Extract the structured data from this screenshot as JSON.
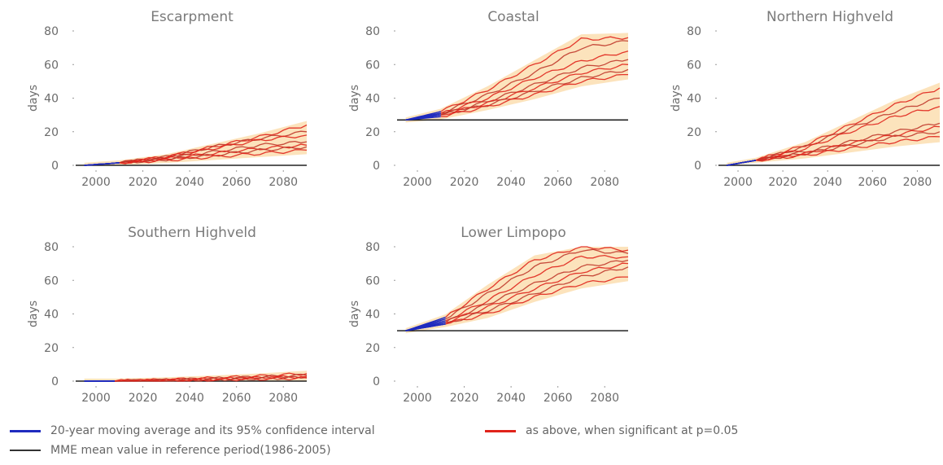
{
  "chart_data": [
    {
      "type": "line",
      "title": "Escarpment",
      "ylabel": "days",
      "x_ticks": [
        2000,
        2020,
        2040,
        2060,
        2080
      ],
      "y_ticks": [
        0,
        20,
        40,
        60,
        80
      ],
      "xlim": [
        1992,
        2090
      ],
      "ylim": [
        0,
        80
      ],
      "reference_value": null,
      "historical_window": [
        1995,
        2010
      ],
      "series": [
        {
          "x": [
            1995,
            2010,
            2030,
            2050,
            2070,
            2090
          ],
          "y": [
            0,
            1.5,
            5,
            11,
            17,
            24
          ]
        },
        {
          "x": [
            1995,
            2010,
            2030,
            2050,
            2070,
            2090
          ],
          "y": [
            0,
            1.5,
            5,
            11,
            16,
            20
          ]
        },
        {
          "x": [
            1995,
            2010,
            2030,
            2050,
            2070,
            2090
          ],
          "y": [
            0,
            1.5,
            5,
            10,
            15,
            18
          ]
        },
        {
          "x": [
            1995,
            2010,
            2030,
            2050,
            2070,
            2090
          ],
          "y": [
            0,
            1.5,
            4,
            8,
            12,
            14
          ]
        },
        {
          "x": [
            1995,
            2010,
            2030,
            2050,
            2070,
            2090
          ],
          "y": [
            0,
            1.5,
            4,
            7,
            10,
            12
          ]
        },
        {
          "x": [
            1995,
            2010,
            2030,
            2050,
            2070,
            2090
          ],
          "y": [
            0,
            1.5,
            3.5,
            6,
            9,
            11
          ]
        },
        {
          "x": [
            1995,
            2010,
            2030,
            2050,
            2070,
            2090
          ],
          "y": [
            0,
            1.5,
            3,
            5,
            7,
            9
          ]
        }
      ]
    },
    {
      "type": "line",
      "title": "Coastal",
      "ylabel": "days",
      "x_ticks": [
        2000,
        2020,
        2040,
        2060,
        2080
      ],
      "y_ticks": [
        0,
        20,
        40,
        60,
        80
      ],
      "xlim": [
        1992,
        2090
      ],
      "ylim": [
        0,
        80
      ],
      "reference_value": 27,
      "historical_window": [
        1995,
        2010
      ],
      "series": [
        {
          "x": [
            1995,
            2010,
            2030,
            2050,
            2070,
            2090
          ],
          "y": [
            27,
            32,
            45,
            60,
            75,
            76
          ]
        },
        {
          "x": [
            1995,
            2010,
            2030,
            2050,
            2070,
            2090
          ],
          "y": [
            27,
            31,
            42,
            55,
            70,
            74
          ]
        },
        {
          "x": [
            1995,
            2010,
            2030,
            2050,
            2070,
            2090
          ],
          "y": [
            27,
            31,
            40,
            52,
            62,
            68
          ]
        },
        {
          "x": [
            1995,
            2010,
            2030,
            2050,
            2070,
            2090
          ],
          "y": [
            27,
            30,
            38,
            48,
            58,
            63
          ]
        },
        {
          "x": [
            1995,
            2010,
            2030,
            2050,
            2070,
            2090
          ],
          "y": [
            27,
            30,
            37,
            46,
            55,
            60
          ]
        },
        {
          "x": [
            1995,
            2010,
            2030,
            2050,
            2070,
            2090
          ],
          "y": [
            27,
            30,
            36,
            44,
            52,
            57
          ]
        },
        {
          "x": [
            1995,
            2010,
            2030,
            2050,
            2070,
            2090
          ],
          "y": [
            27,
            29,
            35,
            42,
            50,
            54
          ]
        }
      ]
    },
    {
      "type": "line",
      "title": "Northern Highveld",
      "ylabel": "days",
      "x_ticks": [
        2000,
        2020,
        2040,
        2060,
        2080
      ],
      "y_ticks": [
        0,
        20,
        40,
        60,
        80
      ],
      "xlim": [
        1992,
        2090
      ],
      "ylim": [
        0,
        80
      ],
      "reference_value": null,
      "historical_window": [
        1995,
        2008
      ],
      "series": [
        {
          "x": [
            1995,
            2008,
            2030,
            2050,
            2070,
            2090
          ],
          "y": [
            0,
            3,
            12,
            24,
            36,
            46
          ]
        },
        {
          "x": [
            1995,
            2008,
            2030,
            2050,
            2070,
            2090
          ],
          "y": [
            0,
            3,
            11,
            22,
            32,
            40
          ]
        },
        {
          "x": [
            1995,
            2008,
            2030,
            2050,
            2070,
            2090
          ],
          "y": [
            0,
            3,
            10,
            20,
            29,
            35
          ]
        },
        {
          "x": [
            1995,
            2008,
            2030,
            2050,
            2070,
            2090
          ],
          "y": [
            0,
            3,
            8,
            14,
            20,
            25
          ]
        },
        {
          "x": [
            1995,
            2008,
            2030,
            2050,
            2070,
            2090
          ],
          "y": [
            0,
            3,
            7,
            13,
            18,
            23
          ]
        },
        {
          "x": [
            1995,
            2008,
            2030,
            2050,
            2070,
            2090
          ],
          "y": [
            0,
            3,
            7,
            12,
            17,
            20
          ]
        },
        {
          "x": [
            1995,
            2008,
            2030,
            2050,
            2070,
            2090
          ],
          "y": [
            0,
            3,
            6,
            10,
            14,
            17
          ]
        }
      ]
    },
    {
      "type": "line",
      "title": "Southern Highveld",
      "ylabel": "days",
      "x_ticks": [
        2000,
        2020,
        2040,
        2060,
        2080
      ],
      "y_ticks": [
        0,
        20,
        40,
        60,
        80
      ],
      "xlim": [
        1992,
        2090
      ],
      "ylim": [
        0,
        80
      ],
      "reference_value": null,
      "historical_window": [
        1995,
        2008
      ],
      "series": [
        {
          "x": [
            1995,
            2008,
            2030,
            2050,
            2070,
            2090
          ],
          "y": [
            0,
            0,
            0.8,
            1.8,
            3,
            4.5
          ]
        },
        {
          "x": [
            1995,
            2008,
            2030,
            2050,
            2070,
            2090
          ],
          "y": [
            0,
            0,
            0.6,
            1.5,
            2.5,
            3.5
          ]
        },
        {
          "x": [
            1995,
            2008,
            2030,
            2050,
            2070,
            2090
          ],
          "y": [
            0,
            0,
            0.5,
            1.2,
            2,
            2.8
          ]
        },
        {
          "x": [
            1995,
            2008,
            2030,
            2050,
            2070,
            2090
          ],
          "y": [
            0,
            0,
            0.4,
            1,
            1.6,
            2.2
          ]
        },
        {
          "x": [
            1995,
            2008,
            2030,
            2050,
            2070,
            2090
          ],
          "y": [
            0,
            0,
            0.3,
            0.8,
            1.3,
            1.8
          ]
        }
      ]
    },
    {
      "type": "line",
      "title": "Lower Limpopo",
      "ylabel": "days",
      "x_ticks": [
        2000,
        2020,
        2040,
        2060,
        2080
      ],
      "y_ticks": [
        0,
        20,
        40,
        60,
        80
      ],
      "xlim": [
        1992,
        2090
      ],
      "ylim": [
        0,
        80
      ],
      "reference_value": 30,
      "historical_window": [
        1995,
        2012
      ],
      "series": [
        {
          "x": [
            1995,
            2012,
            2030,
            2050,
            2070,
            2090
          ],
          "y": [
            30,
            38,
            55,
            72,
            80,
            78
          ]
        },
        {
          "x": [
            1995,
            2012,
            2030,
            2050,
            2070,
            2090
          ],
          "y": [
            30,
            37,
            52,
            68,
            78,
            76
          ]
        },
        {
          "x": [
            1995,
            2012,
            2030,
            2050,
            2070,
            2090
          ],
          "y": [
            30,
            36,
            48,
            63,
            74,
            74
          ]
        },
        {
          "x": [
            1995,
            2012,
            2030,
            2050,
            2070,
            2090
          ],
          "y": [
            30,
            35,
            46,
            58,
            68,
            72
          ]
        },
        {
          "x": [
            1995,
            2012,
            2030,
            2050,
            2070,
            2090
          ],
          "y": [
            30,
            35,
            44,
            55,
            65,
            70
          ]
        },
        {
          "x": [
            1995,
            2012,
            2030,
            2050,
            2070,
            2090
          ],
          "y": [
            30,
            34,
            42,
            52,
            62,
            68
          ]
        },
        {
          "x": [
            1995,
            2012,
            2030,
            2050,
            2070,
            2090
          ],
          "y": [
            30,
            34,
            40,
            50,
            58,
            62
          ]
        }
      ]
    }
  ],
  "legend": {
    "items": [
      {
        "label": "20-year moving average and its 95% confidence interval",
        "color": "#1f2bbf"
      },
      {
        "label": "as above, when significant at p=0.05",
        "color": "#e0231b"
      },
      {
        "label": "MME mean value in reference period(1986-2005)",
        "color": "#333333"
      }
    ]
  },
  "colors": {
    "historical": "#1f2bbf",
    "projection": "#e0231b",
    "projection_alt": "#c0392b",
    "band": "#fbd9a5",
    "reference": "#222222"
  }
}
